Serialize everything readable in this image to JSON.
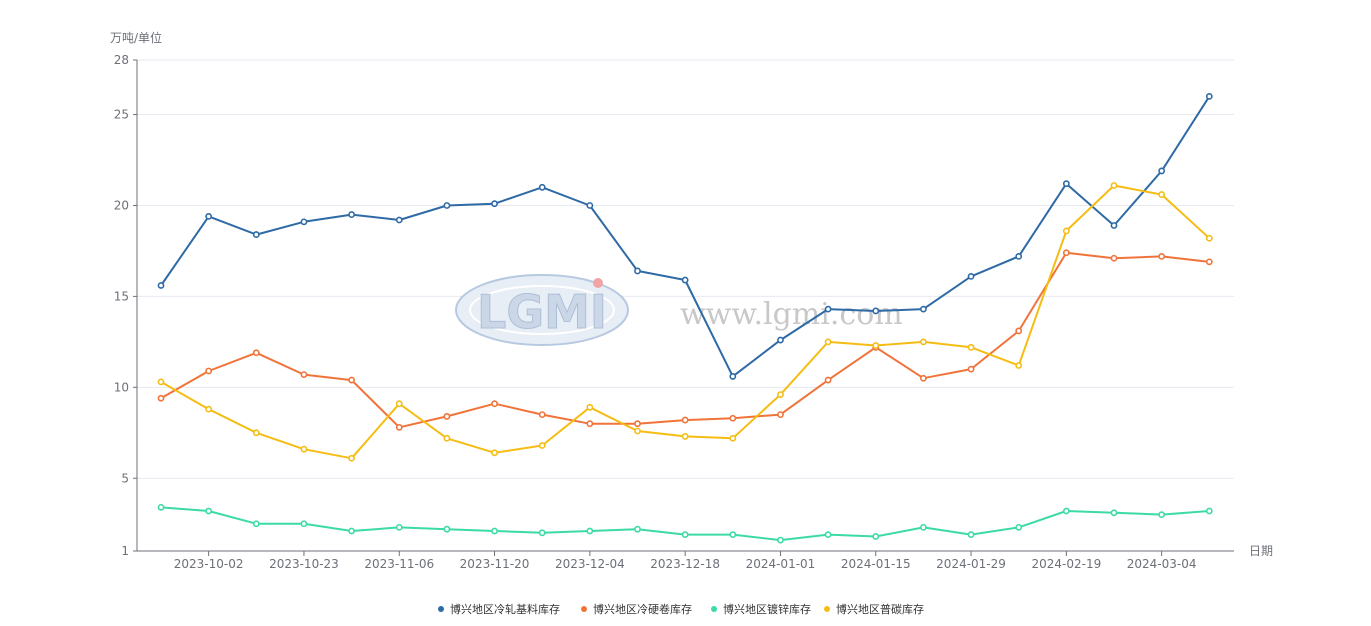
{
  "chart_data": {
    "type": "line",
    "ylabel": "万吨/单位",
    "xlabel": "日期",
    "y_ticks": [
      1,
      5,
      10,
      15,
      20,
      25,
      28
    ],
    "ylim": [
      1,
      28
    ],
    "x_tick_labels": [
      "2023-10-02",
      "2023-10-23",
      "2023-11-06",
      "2023-11-20",
      "2023-12-04",
      "2023-12-18",
      "2024-01-01",
      "2024-01-15",
      "2024-01-29",
      "2024-02-19",
      "2024-03-04"
    ],
    "point_count": 23,
    "grid": true,
    "legend_position": "bottom-center",
    "series": [
      {
        "name": "博兴地区冷轧基料库存",
        "color": "#2e6aa6",
        "values": [
          15.6,
          19.4,
          18.4,
          19.1,
          19.5,
          19.2,
          20.0,
          20.1,
          21.0,
          20.0,
          16.4,
          15.9,
          10.6,
          12.6,
          14.3,
          14.2,
          14.3,
          16.1,
          17.2,
          21.2,
          18.9,
          21.9,
          26.0
        ]
      },
      {
        "name": "博兴地区冷硬卷库存",
        "color": "#f0733a",
        "values": [
          9.4,
          10.9,
          11.9,
          10.7,
          10.4,
          7.8,
          8.4,
          9.1,
          8.5,
          8.0,
          8.0,
          8.2,
          8.3,
          8.5,
          10.4,
          12.2,
          10.5,
          11.0,
          13.1,
          17.4,
          17.1,
          17.2,
          16.9
        ]
      },
      {
        "name": "博兴地区镀锌库存",
        "color": "#3bdba3",
        "values": [
          3.4,
          3.2,
          2.5,
          2.5,
          2.1,
          2.3,
          2.2,
          2.1,
          2.0,
          2.1,
          2.2,
          1.9,
          1.9,
          1.6,
          1.9,
          1.8,
          2.3,
          1.9,
          2.3,
          3.2,
          3.1,
          3.0,
          3.2
        ]
      },
      {
        "name": "博兴地区普碳库存",
        "color": "#f5bd14",
        "values": [
          10.3,
          8.8,
          7.5,
          6.6,
          6.1,
          9.1,
          7.2,
          6.4,
          6.8,
          8.9,
          7.6,
          7.3,
          7.2,
          9.6,
          12.5,
          12.3,
          12.5,
          12.2,
          11.2,
          18.6,
          21.1,
          20.6,
          18.2
        ]
      }
    ]
  },
  "watermark": {
    "logo_text": "LGMI",
    "url_text": "www.lgmi.com"
  }
}
